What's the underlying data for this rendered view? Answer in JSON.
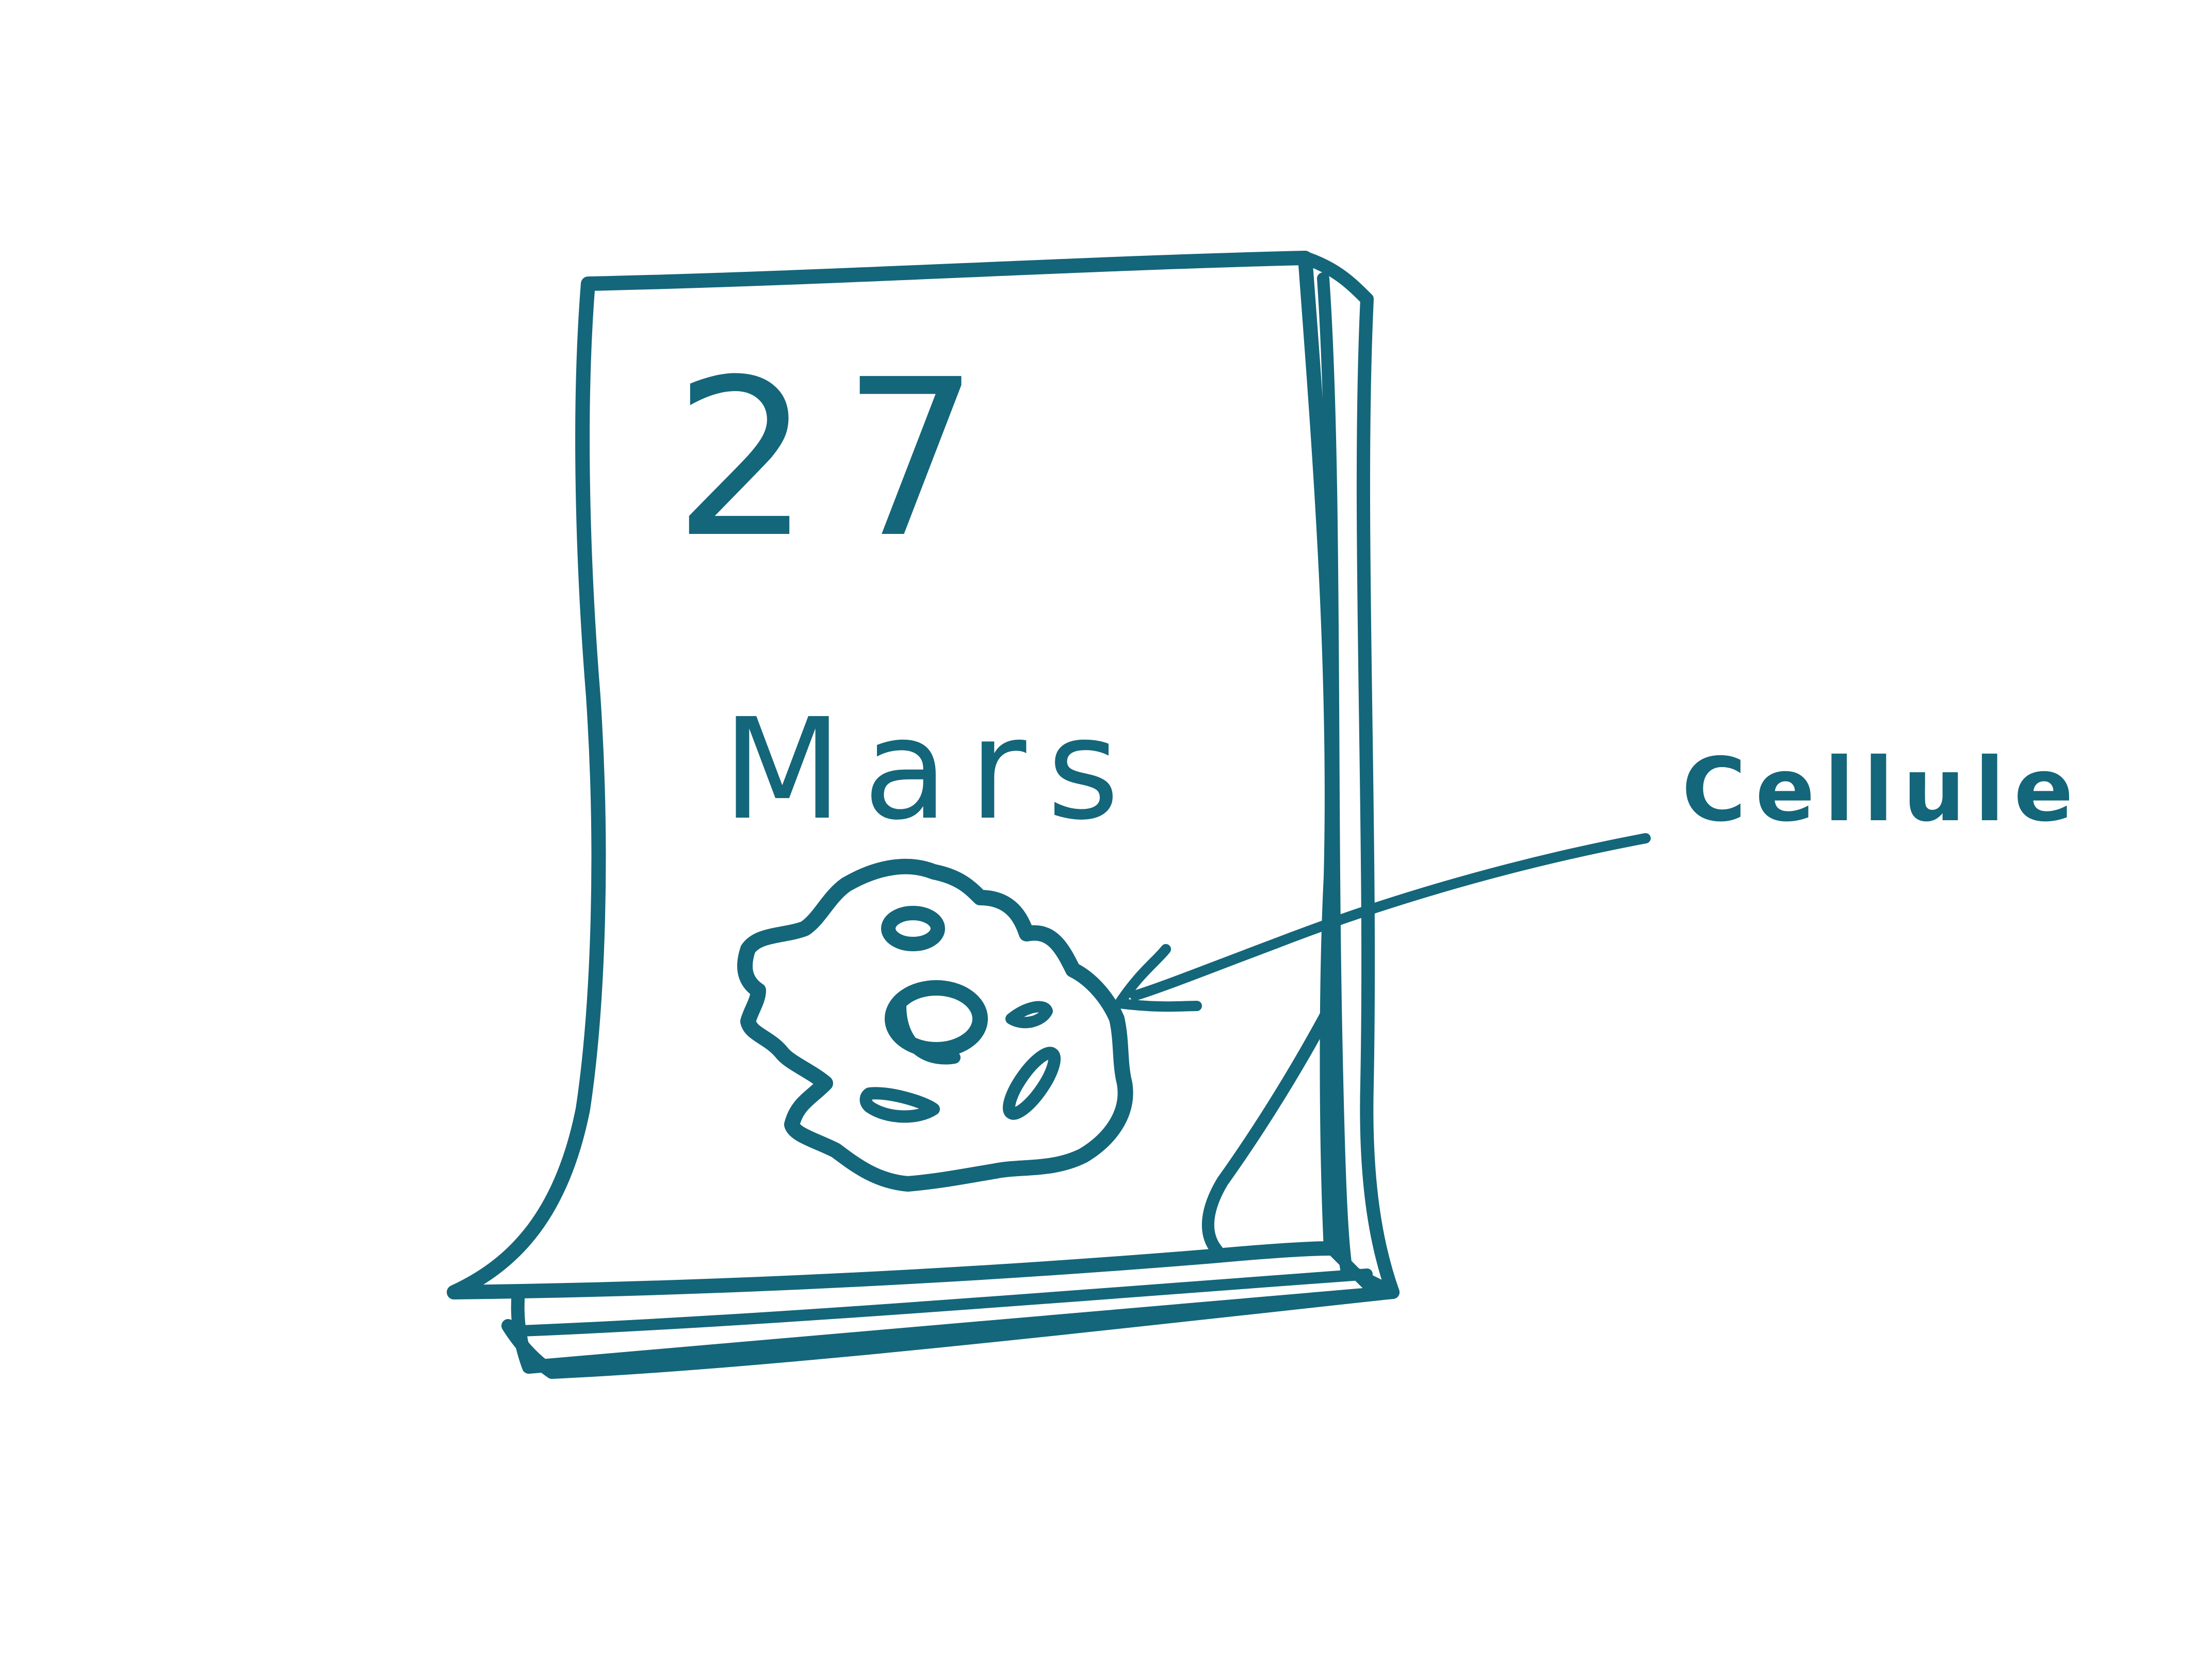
{
  "calendar": {
    "day": "27",
    "month": "Mars"
  },
  "annotation": {
    "label": "Cellule"
  },
  "icons": {
    "cell": "cell-icon",
    "arrow": "arrow-icon"
  },
  "colors": {
    "ink": "#14667a",
    "paper": "#ffffff"
  }
}
